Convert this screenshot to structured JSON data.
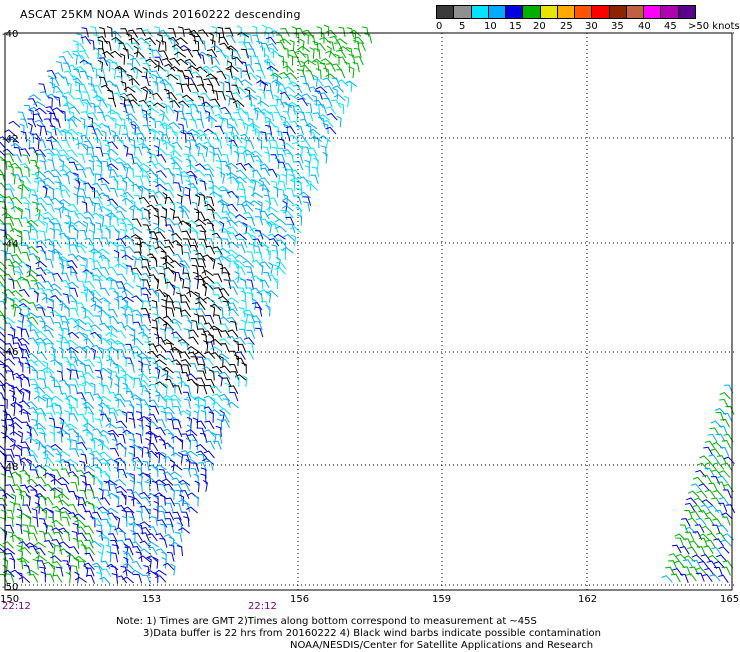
{
  "title": "ASCAT 25KM NOAA Winds 20160222 descending",
  "colorbar": {
    "colors": [
      "#3a3a3a",
      "#909090",
      "#00e5ff",
      "#00aaff",
      "#0000e0",
      "#00b000",
      "#e6e600",
      "#ffaa00",
      "#ff5500",
      "#ff0000",
      "#8b2500",
      "#c06040",
      "#ff00ff",
      "#b000b0",
      "#5a008a"
    ],
    "labels": [
      "0",
      "5",
      "10",
      "15",
      "20",
      "25",
      "30",
      "35",
      "40",
      "45",
      ">50 knots"
    ]
  },
  "map": {
    "lon_labels": [
      "150",
      "153",
      "156",
      "159",
      "162",
      "165"
    ],
    "lat_labels": [
      "-40",
      "-42",
      "-44",
      "-46",
      "-48",
      "-50"
    ],
    "time_labels": [
      "22:12",
      "22:12"
    ]
  },
  "notes": {
    "line1": "Note: 1) Times are GMT 2)Times along bottom correspond to measurement at ~45S",
    "line2": "3)Data buffer is 22 hrs from 20160222 4) Black wind barbs indicate possible contamination",
    "line3": "NOAA/NESDIS/Center for Satellite Applications and Research"
  }
}
